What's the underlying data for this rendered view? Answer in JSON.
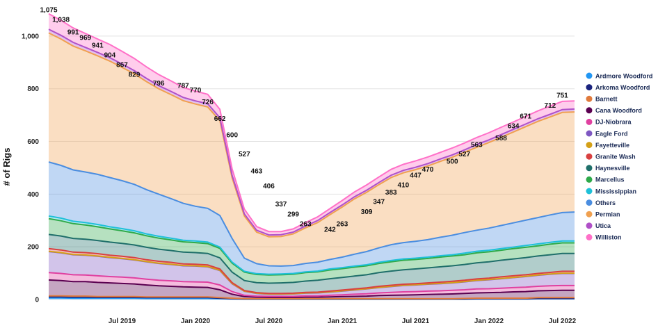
{
  "chart_data": {
    "type": "area",
    "ylabel": "# of Rigs",
    "ylim": [
      0,
      1100
    ],
    "yticks": [
      0,
      200,
      400,
      600,
      800,
      1000
    ],
    "ytick_labels": [
      "0",
      "200",
      "400",
      "600",
      "800",
      "1,000"
    ],
    "x": [
      "2019-01",
      "2019-02",
      "2019-03",
      "2019-04",
      "2019-05",
      "2019-06",
      "2019-07",
      "2019-08",
      "2019-09",
      "2019-10",
      "2019-11",
      "2019-12",
      "2020-01",
      "2020-02",
      "2020-03",
      "2020-04",
      "2020-05",
      "2020-06",
      "2020-07",
      "2020-08",
      "2020-09",
      "2020-10",
      "2020-11",
      "2020-12",
      "2021-01",
      "2021-02",
      "2021-03",
      "2021-04",
      "2021-05",
      "2021-06",
      "2021-07",
      "2021-08",
      "2021-09",
      "2021-10",
      "2021-11",
      "2021-12",
      "2022-01",
      "2022-02",
      "2022-03",
      "2022-04",
      "2022-05",
      "2022-06",
      "2022-07",
      "2022-08"
    ],
    "xticks": [
      {
        "x": "2019-07",
        "label": "Jul 2019"
      },
      {
        "x": "2020-01",
        "label": "Jan 2020"
      },
      {
        "x": "2020-07",
        "label": "Jul 2020"
      },
      {
        "x": "2021-01",
        "label": "Jan 2021"
      },
      {
        "x": "2021-07",
        "label": "Jul 2021"
      },
      {
        "x": "2022-01",
        "label": "Jan 2022"
      },
      {
        "x": "2022-07",
        "label": "Jul 2022"
      }
    ],
    "grid": true,
    "stacked": true,
    "legend_position": "right",
    "series": [
      {
        "name": "Ardmore Woodford",
        "color": "#2196f3",
        "values": [
          6,
          6,
          5,
          5,
          5,
          5,
          5,
          5,
          4,
          4,
          4,
          4,
          4,
          4,
          3,
          2,
          1,
          1,
          1,
          1,
          1,
          1,
          1,
          1,
          1,
          1,
          1,
          1,
          1,
          1,
          1,
          1,
          1,
          1,
          1,
          2,
          2,
          2,
          2,
          2,
          3,
          3,
          3,
          3
        ]
      },
      {
        "name": "Arkoma Woodford",
        "color": "#1a237e",
        "values": [
          4,
          4,
          4,
          4,
          3,
          3,
          3,
          3,
          3,
          3,
          3,
          3,
          3,
          3,
          2,
          1,
          1,
          1,
          1,
          1,
          1,
          1,
          1,
          1,
          1,
          1,
          1,
          1,
          1,
          1,
          1,
          1,
          1,
          1,
          1,
          1,
          1,
          1,
          1,
          1,
          1,
          1,
          1,
          1
        ]
      },
      {
        "name": "Barnett",
        "color": "#e07a3c",
        "values": [
          4,
          4,
          4,
          4,
          3,
          3,
          3,
          3,
          3,
          3,
          3,
          3,
          3,
          3,
          2,
          2,
          1,
          1,
          1,
          1,
          1,
          1,
          1,
          1,
          1,
          1,
          1,
          1,
          1,
          1,
          1,
          1,
          1,
          1,
          2,
          2,
          2,
          2,
          2,
          2,
          3,
          3,
          3,
          3
        ]
      },
      {
        "name": "Cana Woodford",
        "color": "#5a0050",
        "values": [
          60,
          58,
          55,
          55,
          54,
          52,
          50,
          48,
          45,
          42,
          40,
          38,
          37,
          36,
          30,
          15,
          8,
          6,
          5,
          5,
          5,
          6,
          6,
          7,
          8,
          9,
          10,
          12,
          13,
          14,
          15,
          16,
          17,
          18,
          19,
          20,
          21,
          22,
          24,
          25,
          26,
          27,
          28,
          28
        ]
      },
      {
        "name": "DJ-Niobrara",
        "color": "#e040a0",
        "values": [
          28,
          27,
          26,
          25,
          25,
          24,
          24,
          23,
          22,
          21,
          21,
          20,
          20,
          20,
          18,
          10,
          5,
          4,
          4,
          4,
          4,
          5,
          5,
          6,
          7,
          8,
          9,
          10,
          11,
          12,
          12,
          13,
          13,
          14,
          14,
          15,
          15,
          16,
          16,
          17,
          17,
          18,
          18,
          18
        ]
      },
      {
        "name": "Eagle Ford",
        "color": "#7e57c2",
        "values": [
          80,
          78,
          76,
          75,
          74,
          72,
          70,
          68,
          66,
          64,
          62,
          60,
          60,
          58,
          55,
          30,
          15,
          10,
          8,
          8,
          9,
          10,
          11,
          12,
          14,
          16,
          18,
          20,
          22,
          24,
          25,
          26,
          27,
          28,
          30,
          32,
          34,
          36,
          38,
          40,
          42,
          44,
          46,
          46
        ]
      },
      {
        "name": "Fayetteville",
        "color": "#d4a017",
        "values": [
          1,
          1,
          1,
          1,
          1,
          1,
          1,
          1,
          1,
          1,
          1,
          1,
          1,
          1,
          1,
          1,
          1,
          1,
          1,
          1,
          1,
          1,
          1,
          1,
          1,
          1,
          1,
          1,
          1,
          1,
          1,
          1,
          1,
          1,
          1,
          1,
          1,
          1,
          1,
          1,
          1,
          1,
          1,
          1
        ]
      },
      {
        "name": "Granite Wash",
        "color": "#d84040",
        "values": [
          10,
          10,
          9,
          9,
          9,
          8,
          8,
          8,
          7,
          7,
          7,
          6,
          6,
          6,
          5,
          3,
          2,
          2,
          2,
          2,
          2,
          2,
          2,
          3,
          3,
          3,
          3,
          4,
          4,
          4,
          4,
          4,
          5,
          5,
          5,
          5,
          5,
          6,
          6,
          6,
          6,
          6,
          7,
          7
        ]
      },
      {
        "name": "Haynesville",
        "color": "#1f6f6a",
        "values": [
          54,
          53,
          52,
          51,
          50,
          50,
          49,
          48,
          47,
          46,
          45,
          45,
          44,
          44,
          42,
          40,
          38,
          38,
          39,
          40,
          41,
          43,
          45,
          47,
          48,
          49,
          50,
          52,
          54,
          55,
          56,
          57,
          58,
          59,
          60,
          61,
          62,
          63,
          64,
          65,
          66,
          67,
          68,
          68
        ]
      },
      {
        "name": "Marcellus",
        "color": "#2eaa4a",
        "values": [
          60,
          58,
          56,
          54,
          52,
          50,
          48,
          46,
          44,
          42,
          40,
          39,
          38,
          37,
          36,
          34,
          32,
          31,
          31,
          31,
          31,
          32,
          32,
          33,
          33,
          34,
          34,
          35,
          35,
          36,
          36,
          36,
          37,
          37,
          37,
          38,
          38,
          38,
          39,
          39,
          39,
          40,
          40,
          40
        ]
      },
      {
        "name": "Mississippian",
        "color": "#1ec0d8",
        "values": [
          10,
          10,
          9,
          9,
          9,
          8,
          8,
          8,
          7,
          7,
          7,
          6,
          6,
          6,
          5,
          4,
          3,
          3,
          3,
          3,
          3,
          3,
          3,
          4,
          4,
          4,
          4,
          4,
          5,
          5,
          5,
          5,
          5,
          5,
          6,
          6,
          6,
          6,
          6,
          7,
          7,
          7,
          7,
          7
        ]
      },
      {
        "name": "Others",
        "color": "#4a8de0",
        "values": [
          205,
          200,
          195,
          192,
          190,
          187,
          182,
          176,
          168,
          160,
          150,
          140,
          132,
          128,
          120,
          90,
          50,
          38,
          32,
          30,
          30,
          32,
          34,
          36,
          40,
          45,
          50,
          55,
          60,
          62,
          64,
          66,
          70,
          74,
          78,
          80,
          84,
          88,
          92,
          96,
          100,
          104,
          108,
          110
        ]
      },
      {
        "name": "Permian",
        "color": "#f0a050",
        "values": [
          490,
          480,
          470,
          460,
          450,
          442,
          430,
          420,
          410,
          400,
          395,
          390,
          388,
          385,
          360,
          230,
          160,
          120,
          110,
          112,
          120,
          135,
          150,
          170,
          190,
          210,
          225,
          240,
          255,
          265,
          272,
          280,
          288,
          296,
          305,
          315,
          325,
          335,
          345,
          355,
          365,
          372,
          380,
          380
        ]
      },
      {
        "name": "Utica",
        "color": "#b050c8",
        "values": [
          14,
          14,
          14,
          13,
          13,
          13,
          13,
          12,
          12,
          12,
          12,
          12,
          12,
          12,
          11,
          9,
          8,
          7,
          7,
          7,
          7,
          7,
          8,
          8,
          8,
          8,
          8,
          8,
          9,
          9,
          9,
          9,
          9,
          9,
          9,
          10,
          10,
          10,
          10,
          10,
          10,
          10,
          11,
          11
        ]
      },
      {
        "name": "Williston",
        "color": "#ff70c8",
        "values": [
          59,
          57,
          55,
          53,
          51,
          50,
          48,
          46,
          44,
          42,
          40,
          38,
          37,
          36,
          32,
          25,
          18,
          14,
          13,
          12,
          12,
          13,
          14,
          15,
          17,
          18,
          20,
          21,
          22,
          23,
          24,
          25,
          25,
          26,
          26,
          27,
          27,
          28,
          28,
          29,
          30,
          31,
          31,
          31
        ]
      }
    ],
    "data_labels": [
      {
        "x": "2019-01",
        "value": 1075,
        "label": "1,075"
      },
      {
        "x": "2019-02",
        "value": 1038,
        "label": "1,038"
      },
      {
        "x": "2019-03",
        "value": 991,
        "label": "991"
      },
      {
        "x": "2019-04",
        "value": 969,
        "label": "969"
      },
      {
        "x": "2019-05",
        "value": 941,
        "label": "941"
      },
      {
        "x": "2019-06",
        "value": 904,
        "label": "904"
      },
      {
        "x": "2019-07",
        "value": 867,
        "label": "867"
      },
      {
        "x": "2019-08",
        "value": 829,
        "label": "829"
      },
      {
        "x": "2019-10",
        "value": 796,
        "label": "796"
      },
      {
        "x": "2019-12",
        "value": 787,
        "label": "787"
      },
      {
        "x": "2020-01",
        "value": 770,
        "label": "770"
      },
      {
        "x": "2020-02",
        "value": 726,
        "label": "726"
      },
      {
        "x": "2020-03",
        "value": 662,
        "label": "662"
      },
      {
        "x": "2020-04",
        "value": 600,
        "label": "600"
      },
      {
        "x": "2020-05",
        "value": 527,
        "label": "527"
      },
      {
        "x": "2020-06",
        "value": 463,
        "label": "463"
      },
      {
        "x": "2020-07",
        "value": 406,
        "label": "406"
      },
      {
        "x": "2020-08",
        "value": 337,
        "label": "337"
      },
      {
        "x": "2020-09",
        "value": 299,
        "label": "299"
      },
      {
        "x": "2020-10",
        "value": 263,
        "label": "263"
      },
      {
        "x": "2020-12",
        "value": 242,
        "label": "242"
      },
      {
        "x": "2021-01",
        "value": 263,
        "label": "263"
      },
      {
        "x": "2021-03",
        "value": 309,
        "label": "309"
      },
      {
        "x": "2021-04",
        "value": 347,
        "label": "347"
      },
      {
        "x": "2021-05",
        "value": 383,
        "label": "383"
      },
      {
        "x": "2021-06",
        "value": 410,
        "label": "410"
      },
      {
        "x": "2021-07",
        "value": 447,
        "label": "447"
      },
      {
        "x": "2021-08",
        "value": 470,
        "label": "470"
      },
      {
        "x": "2021-10",
        "value": 500,
        "label": "500"
      },
      {
        "x": "2021-11",
        "value": 527,
        "label": "527"
      },
      {
        "x": "2021-12",
        "value": 563,
        "label": "563"
      },
      {
        "x": "2022-02",
        "value": 588,
        "label": "588"
      },
      {
        "x": "2022-03",
        "value": 634,
        "label": "634"
      },
      {
        "x": "2022-04",
        "value": 671,
        "label": "671"
      },
      {
        "x": "2022-06",
        "value": 712,
        "label": "712"
      },
      {
        "x": "2022-07",
        "value": 751,
        "label": "751"
      }
    ]
  }
}
